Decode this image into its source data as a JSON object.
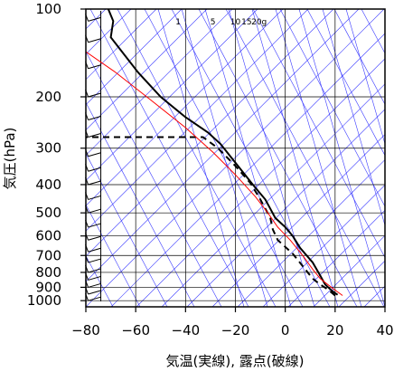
{
  "chart_data": {
    "type": "line",
    "xlabel": "気温(実線), 露点(破線)",
    "ylabel": "気圧(hPa)",
    "xlim": [
      -80,
      40
    ],
    "ylim_hpa": [
      100,
      1050
    ],
    "y_scale": "log",
    "grid": true,
    "x_ticks": [
      -80,
      -60,
      -40,
      -20,
      0,
      20,
      40
    ],
    "y_ticks": [
      100,
      200,
      300,
      400,
      500,
      600,
      700,
      800,
      900,
      1000
    ],
    "mixing_ratio_labels": [
      {
        "text": "1",
        "t": -43
      },
      {
        "text": "5",
        "t": -29
      },
      {
        "text": "10",
        "t": -20
      },
      {
        "text": "15",
        "t": -15.5
      },
      {
        "text": "20g",
        "t": -10.5
      }
    ],
    "colors": {
      "temperature": "#000000",
      "dewpoint": "#000000",
      "parcel": "#ff0000",
      "background_lines": "#3a3aff",
      "grid": "#000000"
    },
    "series": [
      {
        "role": "temperature",
        "style": "solid",
        "points": [
          [
            21,
            955
          ],
          [
            19,
            930
          ],
          [
            16,
            880
          ],
          [
            14,
            820
          ],
          [
            11,
            740
          ],
          [
            6,
            660
          ],
          [
            3,
            600
          ],
          [
            0,
            560
          ],
          [
            -4,
            520
          ],
          [
            -8,
            450
          ],
          [
            -13,
            400
          ],
          [
            -19,
            345
          ],
          [
            -26,
            290
          ],
          [
            -31,
            265
          ],
          [
            -40,
            235
          ],
          [
            -50,
            200
          ],
          [
            -59,
            165
          ],
          [
            -70,
            125
          ],
          [
            -69,
            110
          ],
          [
            -71,
            100
          ]
        ]
      },
      {
        "role": "dewpoint",
        "style": "dashed",
        "points": [
          [
            20,
            960
          ],
          [
            17,
            915
          ],
          [
            14,
            880
          ],
          [
            11,
            840
          ],
          [
            8,
            780
          ],
          [
            3,
            690
          ],
          [
            -3,
            620
          ],
          [
            -5,
            570
          ],
          [
            -6,
            520
          ],
          [
            -10,
            450
          ],
          [
            -14,
            395
          ],
          [
            -20,
            345
          ],
          [
            -27,
            300
          ],
          [
            -33,
            275
          ],
          [
            -80,
            275
          ]
        ]
      },
      {
        "role": "parcel",
        "style": "solid",
        "points": [
          [
            23,
            960
          ],
          [
            20,
            920
          ],
          [
            17,
            880
          ],
          [
            14,
            840
          ],
          [
            11,
            780
          ],
          [
            7,
            700
          ],
          [
            2,
            620
          ],
          [
            -3,
            560
          ],
          [
            -7,
            500
          ],
          [
            -12,
            440
          ],
          [
            -20,
            370
          ],
          [
            -29,
            310
          ],
          [
            -40,
            255
          ],
          [
            -54,
            205
          ],
          [
            -68,
            165
          ],
          [
            -80,
            140
          ]
        ]
      }
    ],
    "wind_barbs_x": -74
  }
}
